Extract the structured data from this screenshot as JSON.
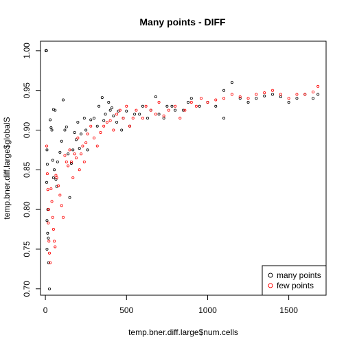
{
  "chart_data": {
    "type": "scatter",
    "title": "Many points - DIFF",
    "xlabel": "temp.bner.diff.large$num.cells",
    "ylabel": "temp.bner.diff.large$globalS",
    "xlim": [
      -30,
      1730
    ],
    "ylim": [
      0.692,
      1.012
    ],
    "x_ticks": [
      0,
      500,
      1000,
      1500
    ],
    "y_ticks": [
      0.7,
      0.75,
      0.8,
      0.85,
      0.9,
      0.95,
      1.0
    ],
    "y_tick_labels": [
      "0.70",
      "0.75",
      "0.80",
      "0.85",
      "0.90",
      "0.95",
      "1.00"
    ],
    "grid": false,
    "legend": {
      "position": "bottom-right",
      "marker": "o"
    },
    "series": [
      {
        "name": "many points",
        "color": "#000000",
        "points": [
          [
            5,
            1.0
          ],
          [
            5,
            1.0
          ],
          [
            5,
            1.0
          ],
          [
            5,
            1.0
          ],
          [
            5,
            1.0
          ],
          [
            5,
            1.0
          ],
          [
            5,
            1.0
          ],
          [
            5,
            1.0
          ],
          [
            5,
            1.0
          ],
          [
            5,
            1.0
          ],
          [
            5,
            1.0
          ],
          [
            5,
            1.0
          ],
          [
            5,
            1.0
          ],
          [
            5,
            1.0
          ],
          [
            5,
            1.0
          ],
          [
            5,
            1.0
          ],
          [
            5,
            1.0
          ],
          [
            5,
            1.0
          ],
          [
            5,
            1.0
          ],
          [
            5,
            1.0
          ],
          [
            5,
            1.0
          ],
          [
            5,
            1.0
          ],
          [
            5,
            1.0
          ],
          [
            5,
            1.0
          ],
          [
            5,
            1.0
          ],
          [
            5,
            1.0
          ],
          [
            5,
            1.0
          ],
          [
            5,
            1.0
          ],
          [
            5,
            1.0
          ],
          [
            5,
            1.0
          ],
          [
            5,
            1.0
          ],
          [
            5,
            1.0
          ],
          [
            5,
            1.0
          ],
          [
            5,
            1.0
          ],
          [
            5,
            1.0
          ],
          [
            5,
            1.0
          ],
          [
            5,
            1.0
          ],
          [
            5,
            1.0
          ],
          [
            5,
            1.0
          ],
          [
            5,
            1.0
          ],
          [
            5,
            1.0
          ],
          [
            5,
            1.0
          ],
          [
            5,
            1.0
          ],
          [
            5,
            1.0
          ],
          [
            5,
            1.0
          ],
          [
            5,
            1.0
          ],
          [
            5,
            1.0
          ],
          [
            5,
            1.0
          ],
          [
            5,
            1.0
          ],
          [
            5,
            1.0
          ],
          [
            5,
            1.0
          ],
          [
            5,
            1.0
          ],
          [
            5,
            1.0
          ],
          [
            5,
            1.0
          ],
          [
            5,
            1.0
          ],
          [
            5,
            1.0
          ],
          [
            5,
            1.0
          ],
          [
            5,
            1.0
          ],
          [
            5,
            1.0
          ],
          [
            5,
            1.0
          ],
          [
            5,
            1.0
          ],
          [
            5,
            1.0
          ],
          [
            5,
            1.0
          ],
          [
            5,
            1.0
          ],
          [
            10,
            0.875
          ],
          [
            12,
            0.857
          ],
          [
            8,
            0.834
          ],
          [
            15,
            0.8
          ],
          [
            10,
            0.786
          ],
          [
            14,
            0.77
          ],
          [
            18,
            0.764
          ],
          [
            10,
            0.75
          ],
          [
            20,
            0.733
          ],
          [
            25,
            0.7
          ],
          [
            30,
            0.913
          ],
          [
            40,
            0.9
          ],
          [
            35,
            0.903
          ],
          [
            50,
            0.926
          ],
          [
            60,
            0.925
          ],
          [
            45,
            0.862
          ],
          [
            55,
            0.85
          ],
          [
            50,
            0.84
          ],
          [
            65,
            0.838
          ],
          [
            70,
            0.829
          ],
          [
            75,
            0.86
          ],
          [
            90,
            0.872
          ],
          [
            100,
            0.886
          ],
          [
            110,
            0.938
          ],
          [
            120,
            0.9
          ],
          [
            130,
            0.904
          ],
          [
            140,
            0.87
          ],
          [
            150,
            0.815
          ],
          [
            160,
            0.858
          ],
          [
            170,
            0.875
          ],
          [
            180,
            0.897
          ],
          [
            190,
            0.888
          ],
          [
            200,
            0.91
          ],
          [
            210,
            0.877
          ],
          [
            220,
            0.895
          ],
          [
            240,
            0.915
          ],
          [
            250,
            0.9
          ],
          [
            260,
            0.875
          ],
          [
            280,
            0.913
          ],
          [
            300,
            0.915
          ],
          [
            320,
            0.905
          ],
          [
            330,
            0.93
          ],
          [
            350,
            0.941
          ],
          [
            360,
            0.912
          ],
          [
            370,
            0.92
          ],
          [
            390,
            0.935
          ],
          [
            400,
            0.925
          ],
          [
            410,
            0.928
          ],
          [
            420,
            0.918
          ],
          [
            440,
            0.91
          ],
          [
            450,
            0.924
          ],
          [
            470,
            0.9
          ],
          [
            480,
            0.915
          ],
          [
            500,
            0.924
          ],
          [
            520,
            0.905
          ],
          [
            550,
            0.92
          ],
          [
            580,
            0.92
          ],
          [
            600,
            0.93
          ],
          [
            630,
            0.915
          ],
          [
            650,
            0.925
          ],
          [
            680,
            0.942
          ],
          [
            700,
            0.92
          ],
          [
            730,
            0.915
          ],
          [
            750,
            0.93
          ],
          [
            780,
            0.93
          ],
          [
            800,
            0.925
          ],
          [
            850,
            0.925
          ],
          [
            880,
            0.935
          ],
          [
            900,
            0.94
          ],
          [
            950,
            0.93
          ],
          [
            1000,
            0.935
          ],
          [
            1050,
            0.93
          ],
          [
            1100,
            0.915
          ],
          [
            1100,
            0.95
          ],
          [
            1150,
            0.96
          ],
          [
            1200,
            0.94
          ],
          [
            1250,
            0.935
          ],
          [
            1300,
            0.94
          ],
          [
            1350,
            0.943
          ],
          [
            1400,
            0.945
          ],
          [
            1450,
            0.942
          ],
          [
            1500,
            0.935
          ],
          [
            1550,
            0.94
          ],
          [
            1600,
            0.945
          ],
          [
            1650,
            0.94
          ],
          [
            1680,
            0.945
          ]
        ]
      },
      {
        "name": "few points",
        "color": "#ff0000",
        "points": [
          [
            8,
            0.88
          ],
          [
            12,
            0.845
          ],
          [
            15,
            0.825
          ],
          [
            20,
            0.8
          ],
          [
            18,
            0.783
          ],
          [
            22,
            0.76
          ],
          [
            25,
            0.745
          ],
          [
            30,
            0.733
          ],
          [
            35,
            0.826
          ],
          [
            40,
            0.81
          ],
          [
            45,
            0.79
          ],
          [
            50,
            0.775
          ],
          [
            55,
            0.76
          ],
          [
            60,
            0.753
          ],
          [
            65,
            0.843
          ],
          [
            70,
            0.84
          ],
          [
            80,
            0.83
          ],
          [
            90,
            0.818
          ],
          [
            100,
            0.805
          ],
          [
            110,
            0.79
          ],
          [
            120,
            0.868
          ],
          [
            130,
            0.86
          ],
          [
            140,
            0.855
          ],
          [
            150,
            0.875
          ],
          [
            160,
            0.86
          ],
          [
            170,
            0.84
          ],
          [
            180,
            0.87
          ],
          [
            190,
            0.865
          ],
          [
            200,
            0.89
          ],
          [
            210,
            0.85
          ],
          [
            220,
            0.87
          ],
          [
            230,
            0.88
          ],
          [
            240,
            0.86
          ],
          [
            250,
            0.884
          ],
          [
            260,
            0.895
          ],
          [
            280,
            0.905
          ],
          [
            300,
            0.89
          ],
          [
            320,
            0.88
          ],
          [
            340,
            0.897
          ],
          [
            360,
            0.905
          ],
          [
            380,
            0.91
          ],
          [
            400,
            0.912
          ],
          [
            420,
            0.9
          ],
          [
            440,
            0.92
          ],
          [
            460,
            0.925
          ],
          [
            480,
            0.915
          ],
          [
            500,
            0.93
          ],
          [
            520,
            0.905
          ],
          [
            540,
            0.915
          ],
          [
            560,
            0.925
          ],
          [
            600,
            0.915
          ],
          [
            620,
            0.93
          ],
          [
            650,
            0.925
          ],
          [
            680,
            0.92
          ],
          [
            700,
            0.935
          ],
          [
            730,
            0.918
          ],
          [
            760,
            0.925
          ],
          [
            800,
            0.93
          ],
          [
            830,
            0.915
          ],
          [
            860,
            0.925
          ],
          [
            900,
            0.935
          ],
          [
            930,
            0.93
          ],
          [
            960,
            0.94
          ],
          [
            1000,
            0.935
          ],
          [
            1050,
            0.938
          ],
          [
            1100,
            0.94
          ],
          [
            1150,
            0.945
          ],
          [
            1200,
            0.942
          ],
          [
            1250,
            0.94
          ],
          [
            1300,
            0.945
          ],
          [
            1350,
            0.947
          ],
          [
            1400,
            0.95
          ],
          [
            1450,
            0.945
          ],
          [
            1500,
            0.94
          ],
          [
            1550,
            0.945
          ],
          [
            1600,
            0.945
          ],
          [
            1650,
            0.948
          ],
          [
            1680,
            0.955
          ]
        ]
      }
    ]
  }
}
